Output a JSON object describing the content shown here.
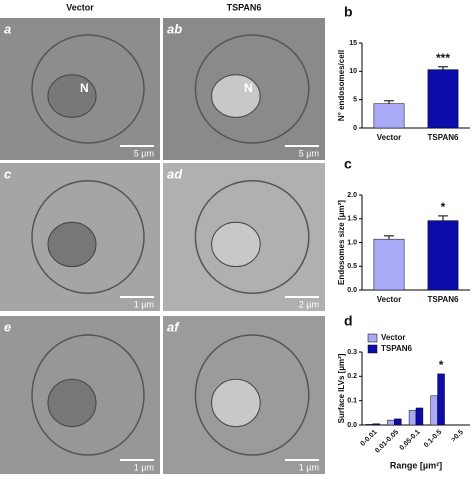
{
  "figure": {
    "columns": [
      "Vector",
      "TSPAN6"
    ],
    "panels": [
      {
        "label": "a",
        "scale": "5 µm",
        "mark": "N"
      },
      {
        "label": "ab",
        "scale": "5 µm",
        "mark": "N"
      },
      {
        "label": "c",
        "scale": "1 µm"
      },
      {
        "label": "ad",
        "scale": "2 µm"
      },
      {
        "label": "e",
        "scale": "1 µm"
      },
      {
        "label": "af",
        "scale": "1 µm"
      }
    ]
  },
  "chart_data": [
    {
      "type": "bar",
      "title": "b",
      "ylabel": "N° endosomes/cell",
      "categories": [
        "Vector",
        "TSPAN6"
      ],
      "values": [
        4.3,
        10.3
      ],
      "errors": [
        0.5,
        0.5
      ],
      "colors": [
        "#a9a9f7",
        "#0c0cab"
      ],
      "ylim": [
        0,
        15
      ],
      "yticks": [
        0,
        5,
        10,
        15
      ],
      "annotations": [
        "***"
      ]
    },
    {
      "type": "bar",
      "title": "c",
      "ylabel": "Endosomes size [μm²]",
      "categories": [
        "Vector",
        "TSPAN6"
      ],
      "values": [
        1.07,
        1.46
      ],
      "errors": [
        0.07,
        0.1
      ],
      "colors": [
        "#a9a9f7",
        "#0c0cab"
      ],
      "ylim": [
        0,
        2
      ],
      "yticks": [
        {
          "value": 0,
          "label": "0.0"
        },
        {
          "value": 0.5,
          "label": "0.5"
        },
        {
          "value": 1,
          "label": "1.0"
        },
        {
          "value": 1.5,
          "label": "1.5"
        },
        {
          "value": 2,
          "label": "2.0"
        }
      ],
      "annotations": [
        "*"
      ]
    },
    {
      "type": "bar",
      "title": "d",
      "ylabel": "Surface ILVs [µm²]",
      "xlabel": "Range [µm²]",
      "categories": [
        "0-0.01",
        "0.01-0.05",
        "0.05-0.1",
        "0.1-0.5",
        ">0.5"
      ],
      "series": [
        {
          "name": "Vector",
          "color": "#a9a9f7",
          "values": [
            0.003,
            0.02,
            0.06,
            0.12,
            0
          ]
        },
        {
          "name": "TSPAN6",
          "color": "#0c0cab",
          "values": [
            0.005,
            0.025,
            0.07,
            0.21,
            0
          ]
        }
      ],
      "ylim": [
        0,
        0.3
      ],
      "yticks": [
        {
          "value": 0,
          "label": "0.0"
        },
        0.1,
        0.2,
        0.3
      ],
      "legend": "top-left",
      "annotations": [
        "*"
      ]
    }
  ]
}
